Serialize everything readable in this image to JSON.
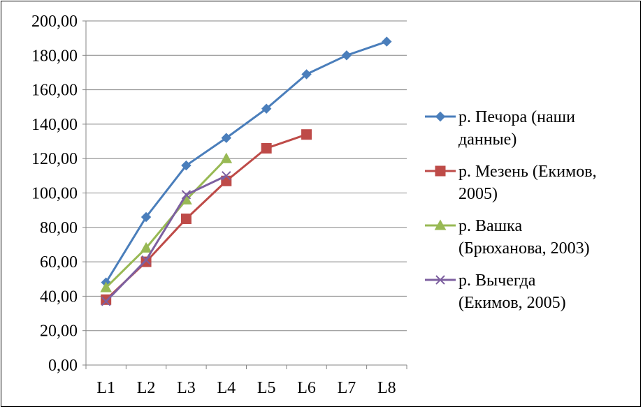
{
  "chart_data": {
    "type": "line",
    "categories": [
      "L1",
      "L2",
      "L3",
      "L4",
      "L5",
      "L6",
      "L7",
      "L8"
    ],
    "ylim": [
      0,
      200
    ],
    "ytick_step": 20,
    "ytick_labels": [
      "0,00",
      "20,00",
      "40,00",
      "60,00",
      "80,00",
      "100,00",
      "120,00",
      "140,00",
      "160,00",
      "180,00",
      "200,00"
    ],
    "grid": "horizontal",
    "legend_position": "right",
    "series": [
      {
        "name": "р. Печора  (наши данные)",
        "legend_lines": [
          "р. Печора  (наши",
          "данные)"
        ],
        "color": "#4a7ebb",
        "marker": "diamond",
        "values": [
          48,
          86,
          116,
          132,
          149,
          169,
          180,
          188
        ]
      },
      {
        "name": "р. Мезень (Екимов, 2005)",
        "legend_lines": [
          "р. Мезень (Екимов,",
          "2005)"
        ],
        "color": "#be4b48",
        "marker": "square",
        "values": [
          38,
          60,
          85,
          107,
          126,
          134,
          null,
          null
        ]
      },
      {
        "name": "р. Вашка (Брюханова, 2003)",
        "legend_lines": [
          "р. Вашка",
          "(Брюханова, 2003)"
        ],
        "color": "#98b954",
        "marker": "triangle",
        "values": [
          45,
          68,
          96,
          120,
          null,
          null,
          null,
          null
        ]
      },
      {
        "name": "р. Вычегда (Екимов, 2005)",
        "legend_lines": [
          "р. Вычегда",
          "(Екимов, 2005)"
        ],
        "color": "#7d60a0",
        "marker": "x",
        "values": [
          37,
          61,
          99,
          110,
          null,
          null,
          null,
          null
        ]
      }
    ]
  }
}
